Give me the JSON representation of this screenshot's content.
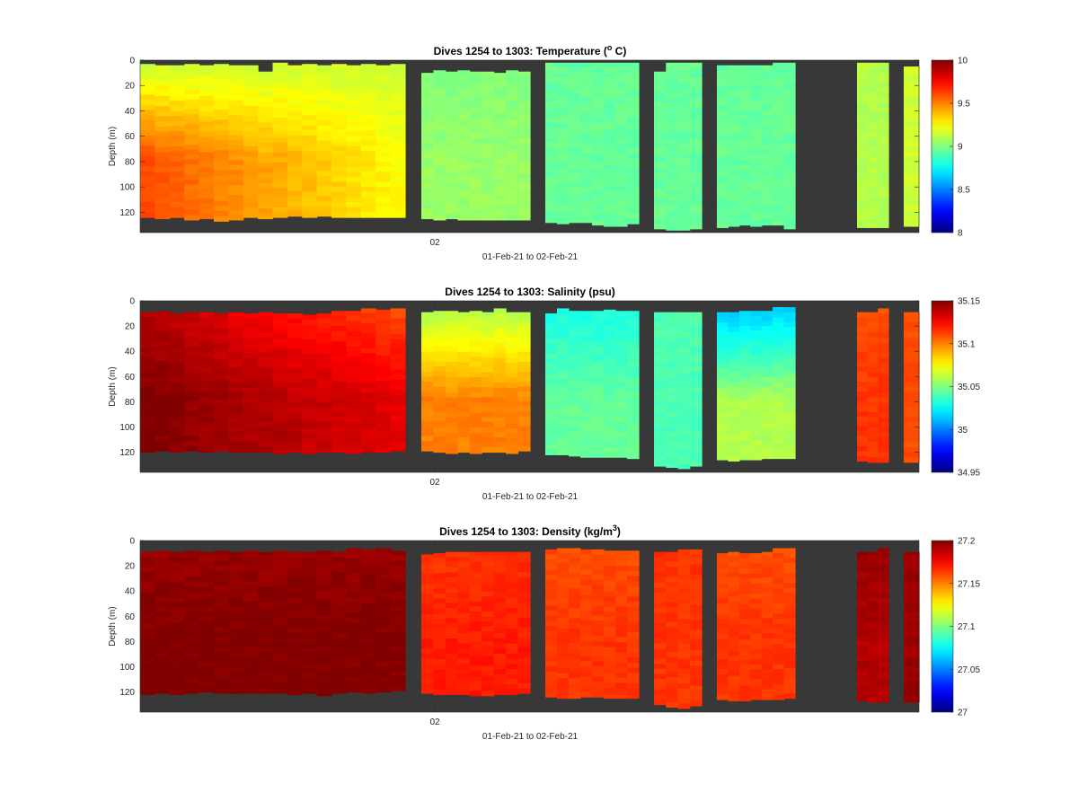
{
  "chart_data": [
    {
      "type": "heatmap",
      "variable": "Temperature",
      "title": "Dives 1254 to 1303: Temperature (",
      "title_sup": "o",
      "title_end": " C)",
      "ylabel": "Depth (m)",
      "xlabel": "01-Feb-21 to 02-Feb-21",
      "x_tick_labels": [
        "02"
      ],
      "y_ticks": [
        0,
        20,
        40,
        60,
        80,
        100,
        120
      ],
      "ylim": [
        0,
        136
      ],
      "y_reversed": true,
      "clim": [
        8,
        10
      ],
      "colorbar_ticks": [
        "8",
        "8.5",
        "9",
        "9.5",
        "10"
      ],
      "colormap": "jet",
      "missing_color": "#383838",
      "dive_groups": [
        {
          "dives": 18,
          "top": [
            3,
            4,
            4,
            3,
            4,
            3,
            4,
            4,
            9,
            2,
            4,
            3,
            4,
            3,
            4,
            3,
            4,
            3
          ],
          "bottom": [
            124,
            125,
            124,
            126,
            125,
            127,
            126,
            124,
            125,
            124,
            123,
            124,
            123,
            124,
            124,
            124,
            124,
            124
          ],
          "surface": 9.15,
          "deep": 9.55,
          "deep_west": 9.6,
          "deep_east": 9.25
        },
        {
          "dives": 9,
          "top": [
            10,
            8,
            9,
            8,
            9,
            9,
            10,
            8,
            9
          ],
          "bottom": [
            125,
            126,
            125,
            126,
            126,
            126,
            126,
            126,
            126
          ],
          "surface": 9.0,
          "deep": 9.05
        },
        {
          "dives": 8,
          "top": [
            2,
            2,
            2,
            2,
            2,
            2,
            2,
            2
          ],
          "bottom": [
            128,
            129,
            128,
            128,
            130,
            131,
            131,
            129
          ],
          "surface": 8.95,
          "deep": 8.95
        },
        {
          "dives": 4,
          "top": [
            9,
            2,
            2,
            2
          ],
          "bottom": [
            133,
            134,
            134,
            133
          ],
          "surface": 8.95,
          "deep": 8.95
        },
        {
          "dives": 7,
          "top": [
            4,
            4,
            4,
            4,
            4,
            2,
            2
          ],
          "bottom": [
            132,
            131,
            130,
            131,
            130,
            130,
            133
          ],
          "surface": 8.95,
          "deep": 8.95
        },
        {
          "dives": 3,
          "top": [
            2,
            2,
            2
          ],
          "bottom": [
            132,
            132,
            132
          ],
          "surface": 9.1,
          "deep": 9.1
        },
        {
          "dives": 1,
          "top": [
            5
          ],
          "bottom": [
            131
          ],
          "surface": 9.15,
          "deep": 9.15
        }
      ]
    },
    {
      "type": "heatmap",
      "variable": "Salinity",
      "title": "Dives 1254 to 1303: Salinity (psu)",
      "ylabel": "Depth (m)",
      "xlabel": "01-Feb-21 to 02-Feb-21",
      "x_tick_labels": [
        "02"
      ],
      "y_ticks": [
        0,
        20,
        40,
        60,
        80,
        100,
        120
      ],
      "ylim": [
        0,
        136
      ],
      "y_reversed": true,
      "clim": [
        34.95,
        35.15
      ],
      "colorbar_ticks": [
        "34.95",
        "35",
        "35.05",
        "35.1",
        "35.15"
      ],
      "colormap": "jet",
      "missing_color": "#383838",
      "dive_groups": [
        {
          "dives": 18,
          "top": [
            9,
            8,
            10,
            9,
            9,
            10,
            9,
            10,
            9,
            10,
            10,
            11,
            10,
            8,
            8,
            6,
            7,
            6
          ],
          "bottom": [
            120,
            119,
            120,
            119,
            120,
            119,
            120,
            120,
            120,
            121,
            120,
            121,
            120,
            120,
            121,
            120,
            120,
            119
          ],
          "surface": 35.14,
          "deep": 35.15,
          "surface_east": 35.11,
          "deep_east": 35.13
        },
        {
          "dives": 9,
          "top": [
            9,
            8,
            8,
            9,
            8,
            9,
            6,
            9,
            9
          ],
          "bottom": [
            119,
            120,
            121,
            120,
            121,
            120,
            120,
            121,
            119
          ],
          "surface": 35.06,
          "deep": 35.1
        },
        {
          "dives": 8,
          "top": [
            10,
            6,
            8,
            8,
            8,
            7,
            8,
            8
          ],
          "bottom": [
            122,
            122,
            123,
            124,
            124,
            124,
            124,
            125
          ],
          "surface": 35.03,
          "deep": 35.045
        },
        {
          "dives": 4,
          "top": [
            9,
            9,
            9,
            9
          ],
          "bottom": [
            131,
            132,
            133,
            131
          ],
          "surface": 35.04,
          "deep": 35.04
        },
        {
          "dives": 7,
          "top": [
            9,
            9,
            8,
            8,
            8,
            5,
            5
          ],
          "bottom": [
            126,
            127,
            126,
            126,
            125,
            125,
            125
          ],
          "surface": 35.015,
          "deep": 35.06
        },
        {
          "dives": 3,
          "top": [
            9,
            9,
            6
          ],
          "bottom": [
            127,
            128,
            128
          ],
          "surface": 35.11,
          "deep": 35.115
        },
        {
          "dives": 1,
          "top": [
            9
          ],
          "bottom": [
            128
          ],
          "surface": 35.11,
          "deep": 35.11
        }
      ]
    },
    {
      "type": "heatmap",
      "variable": "Density",
      "title": "Dives 1254 to 1303: Density (kg/m",
      "title_sup": "3",
      "title_end": ")",
      "ylabel": "Depth (m)",
      "xlabel": "01-Feb-21 to 02-Feb-21",
      "x_tick_labels": [
        "02"
      ],
      "y_ticks": [
        0,
        20,
        40,
        60,
        80,
        100,
        120
      ],
      "ylim": [
        0,
        136
      ],
      "y_reversed": true,
      "clim": [
        27,
        27.2
      ],
      "colorbar_ticks": [
        "27",
        "27.05",
        "27.1",
        "27.15",
        "27.2"
      ],
      "colormap": "jet",
      "missing_color": "#383838",
      "dive_groups": [
        {
          "dives": 18,
          "top": [
            9,
            8,
            9,
            8,
            9,
            8,
            9,
            8,
            9,
            8,
            9,
            9,
            8,
            9,
            6,
            7,
            6,
            8
          ],
          "bottom": [
            122,
            121,
            122,
            121,
            120,
            121,
            121,
            121,
            121,
            121,
            122,
            121,
            123,
            121,
            120,
            121,
            120,
            119
          ],
          "surface": 27.195,
          "deep": 27.2
        },
        {
          "dives": 9,
          "top": [
            11,
            10,
            9,
            9,
            9,
            9,
            9,
            9,
            9
          ],
          "bottom": [
            121,
            122,
            122,
            122,
            123,
            123,
            122,
            122,
            121
          ],
          "surface": 27.165,
          "deep": 27.17
        },
        {
          "dives": 8,
          "top": [
            7,
            6,
            6,
            7,
            7,
            8,
            8,
            8
          ],
          "bottom": [
            124,
            125,
            125,
            124,
            124,
            125,
            125,
            125
          ],
          "surface": 27.16,
          "deep": 27.165
        },
        {
          "dives": 4,
          "top": [
            9,
            9,
            7,
            7
          ],
          "bottom": [
            130,
            132,
            133,
            131
          ],
          "surface": 27.165,
          "deep": 27.165
        },
        {
          "dives": 7,
          "top": [
            10,
            9,
            10,
            10,
            9,
            6,
            6
          ],
          "bottom": [
            126,
            127,
            127,
            126,
            126,
            126,
            125
          ],
          "surface": 27.16,
          "deep": 27.165
        },
        {
          "dives": 3,
          "top": [
            9,
            9,
            6
          ],
          "bottom": [
            127,
            128,
            128
          ],
          "surface": 27.195,
          "deep": 27.19
        },
        {
          "dives": 1,
          "top": [
            9
          ],
          "bottom": [
            128
          ],
          "surface": 27.195,
          "deep": 27.195
        }
      ]
    }
  ]
}
